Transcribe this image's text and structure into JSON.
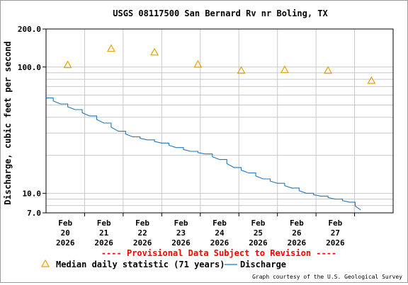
{
  "chart_data": {
    "type": "line",
    "title": "USGS 08117500 San Bernard Rv nr Boling, TX",
    "ylabel": "Discharge, cubic feet per second",
    "xlabel": "",
    "yscale": "log",
    "ylim": [
      7,
      200
    ],
    "ytick_labels": [
      "7.0",
      "10.0",
      "100.0",
      "200.0"
    ],
    "ytick_values": [
      7,
      10,
      100,
      200
    ],
    "xlim": [
      "2026-02-20 00:00",
      "2026-02-28 00:00"
    ],
    "xtick_labels": [
      {
        "month": "Feb",
        "day": "20",
        "year": "2026"
      },
      {
        "month": "Feb",
        "day": "21",
        "year": "2026"
      },
      {
        "month": "Feb",
        "day": "22",
        "year": "2026"
      },
      {
        "month": "Feb",
        "day": "23",
        "year": "2026"
      },
      {
        "month": "Feb",
        "day": "24",
        "year": "2026"
      },
      {
        "month": "Feb",
        "day": "25",
        "year": "2026"
      },
      {
        "month": "Feb",
        "day": "26",
        "year": "2026"
      },
      {
        "month": "Feb",
        "day": "27",
        "year": "2026"
      }
    ],
    "grid": true,
    "series": [
      {
        "name": "Median daily statistic (71 years)",
        "marker": "triangle",
        "color": "#e8a000",
        "x": [
          "2026-02-20 12:00",
          "2026-02-21 12:00",
          "2026-02-22 12:00",
          "2026-02-23 12:00",
          "2026-02-24 12:00",
          "2026-02-25 12:00",
          "2026-02-26 12:00",
          "2026-02-27 12:00"
        ],
        "values": [
          104,
          140,
          131,
          105,
          94,
          95,
          94,
          78
        ]
      },
      {
        "name": "Discharge",
        "marker": "line",
        "color": "#1f77c0",
        "x": [
          "2026-02-20 00:00",
          "2026-02-20 08:00",
          "2026-02-20 16:00",
          "2026-02-21 00:00",
          "2026-02-21 08:00",
          "2026-02-21 16:00",
          "2026-02-22 00:00",
          "2026-02-22 08:00",
          "2026-02-22 16:00",
          "2026-02-23 00:00",
          "2026-02-23 08:00",
          "2026-02-23 16:00",
          "2026-02-24 00:00",
          "2026-02-24 08:00",
          "2026-02-24 16:00",
          "2026-02-25 00:00",
          "2026-02-25 08:00",
          "2026-02-25 16:00",
          "2026-02-26 00:00",
          "2026-02-26 08:00",
          "2026-02-26 16:00",
          "2026-02-27 00:00",
          "2026-02-27 06:00"
        ],
        "values": [
          57,
          51,
          46,
          41,
          36,
          31,
          28,
          26.5,
          25,
          23,
          21.5,
          20.5,
          18.5,
          16,
          14.5,
          13,
          12,
          11,
          10,
          9.5,
          9,
          8.5,
          7.4
        ]
      }
    ],
    "legend_position": "bottom-left",
    "annotation": "---- Provisional Data Subject to Revision ----",
    "credit": "Graph courtesy of the U.S. Geological Survey",
    "colors": {
      "grid": "#c8c8c8",
      "axes": "#000000",
      "annotation": "#ff0000",
      "median_marker": "#e8a000",
      "discharge_line": "#1f77c0"
    }
  }
}
